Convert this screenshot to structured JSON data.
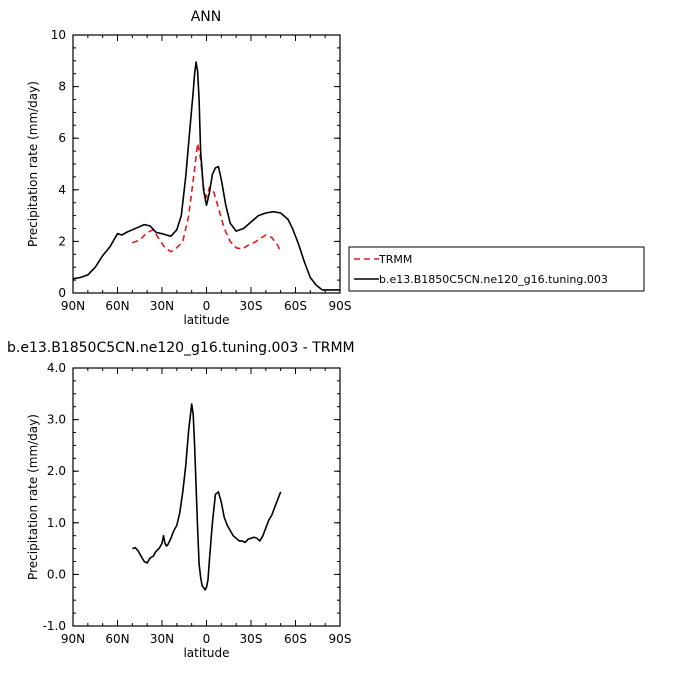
{
  "chart_data": [
    {
      "type": "line",
      "title": "ANN",
      "xlabel": "latitude",
      "ylabel": "Precipitation rate (mm/day)",
      "xlim": [
        90,
        -90
      ],
      "ylim": [
        0,
        10
      ],
      "xticks": [
        90,
        60,
        30,
        0,
        -30,
        -60,
        -90
      ],
      "xtick_labels": [
        "90N",
        "60N",
        "30N",
        "0",
        "30S",
        "60S",
        "90S"
      ],
      "yticks": [
        0,
        2,
        4,
        6,
        8,
        10
      ],
      "ytick_labels": [
        "0",
        "2",
        "4",
        "6",
        "8",
        "10"
      ],
      "legend_position": "right",
      "series": [
        {
          "name": "TRMM",
          "color": "#e41a1c",
          "dash": "dashed",
          "x": [
            50,
            45,
            40,
            36,
            32,
            28,
            24,
            20,
            16,
            12,
            8,
            6,
            4,
            2,
            0,
            -2,
            -5,
            -8,
            -12,
            -16,
            -20,
            -24,
            -28,
            -32,
            -36,
            -40,
            -44,
            -48,
            -50
          ],
          "y": [
            1.95,
            2.05,
            2.35,
            2.45,
            2.1,
            1.75,
            1.6,
            1.75,
            2.0,
            3.0,
            4.8,
            5.8,
            5.2,
            4.1,
            3.7,
            4.1,
            3.9,
            3.3,
            2.5,
            2.0,
            1.75,
            1.7,
            1.85,
            1.95,
            2.1,
            2.25,
            2.15,
            1.85,
            1.6
          ]
        },
        {
          "name": "b.e13.B1850C5CN.ne120_g16.tuning.003",
          "color": "#000000",
          "dash": "solid",
          "x": [
            90,
            85,
            80,
            75,
            70,
            65,
            62,
            60,
            57,
            54,
            50,
            46,
            42,
            38,
            34,
            30,
            27,
            24,
            20,
            17,
            14,
            11,
            9,
            8,
            7,
            6,
            5,
            4,
            2,
            0,
            -2,
            -4,
            -6,
            -8,
            -10,
            -13,
            -16,
            -20,
            -25,
            -30,
            -35,
            -40,
            -45,
            -50,
            -55,
            -58,
            -62,
            -66,
            -70,
            -74,
            -78,
            -82,
            -86,
            -90
          ],
          "y": [
            0.55,
            0.6,
            0.7,
            1.0,
            1.45,
            1.8,
            2.1,
            2.3,
            2.25,
            2.35,
            2.45,
            2.55,
            2.65,
            2.6,
            2.35,
            2.3,
            2.25,
            2.2,
            2.45,
            3.0,
            4.5,
            6.5,
            7.8,
            8.5,
            8.95,
            8.6,
            7.5,
            5.5,
            4.0,
            3.4,
            3.9,
            4.6,
            4.85,
            4.9,
            4.4,
            3.4,
            2.7,
            2.4,
            2.5,
            2.75,
            3.0,
            3.1,
            3.15,
            3.1,
            2.85,
            2.5,
            1.9,
            1.2,
            0.6,
            0.3,
            0.12,
            0.12,
            0.12,
            0.12
          ]
        }
      ]
    },
    {
      "type": "line",
      "title": "b.e13.B1850C5CN.ne120_g16.tuning.003 - TRMM",
      "xlabel": "latitude",
      "ylabel": "Precipitation rate (mm/day)",
      "xlim": [
        90,
        -90
      ],
      "ylim": [
        -1,
        4
      ],
      "xticks": [
        90,
        60,
        30,
        0,
        -30,
        -60,
        -90
      ],
      "xtick_labels": [
        "90N",
        "60N",
        "30N",
        "0",
        "30S",
        "60S",
        "90S"
      ],
      "yticks": [
        -1,
        0,
        1,
        2,
        3,
        4
      ],
      "ytick_labels": [
        "-1.0",
        "0.0",
        "1.0",
        "2.0",
        "3.0",
        "4.0"
      ],
      "series": [
        {
          "color": "#000000",
          "dash": "solid",
          "x": [
            50,
            48,
            46,
            44,
            42,
            40,
            38,
            36,
            34,
            32,
            30,
            29,
            28,
            27,
            26,
            24,
            22,
            20,
            18,
            16,
            14,
            12,
            10,
            9,
            8,
            7,
            6,
            5,
            4,
            3,
            2,
            1,
            0,
            -1,
            -2,
            -4,
            -6,
            -8,
            -10,
            -12,
            -14,
            -16,
            -18,
            -20,
            -22,
            -24,
            -26,
            -28,
            -30,
            -32,
            -34,
            -36,
            -38,
            -40,
            -42,
            -44,
            -46,
            -48,
            -50
          ],
          "y": [
            0.5,
            0.52,
            0.45,
            0.35,
            0.25,
            0.22,
            0.32,
            0.35,
            0.45,
            0.5,
            0.6,
            0.75,
            0.6,
            0.55,
            0.58,
            0.7,
            0.85,
            0.95,
            1.2,
            1.6,
            2.1,
            2.8,
            3.3,
            3.1,
            2.5,
            1.7,
            0.9,
            0.2,
            -0.05,
            -0.22,
            -0.25,
            -0.3,
            -0.25,
            -0.1,
            0.3,
            1.0,
            1.55,
            1.6,
            1.4,
            1.1,
            0.95,
            0.85,
            0.75,
            0.7,
            0.65,
            0.65,
            0.62,
            0.68,
            0.7,
            0.72,
            0.7,
            0.65,
            0.75,
            0.9,
            1.05,
            1.15,
            1.3,
            1.45,
            1.6
          ]
        }
      ]
    }
  ]
}
